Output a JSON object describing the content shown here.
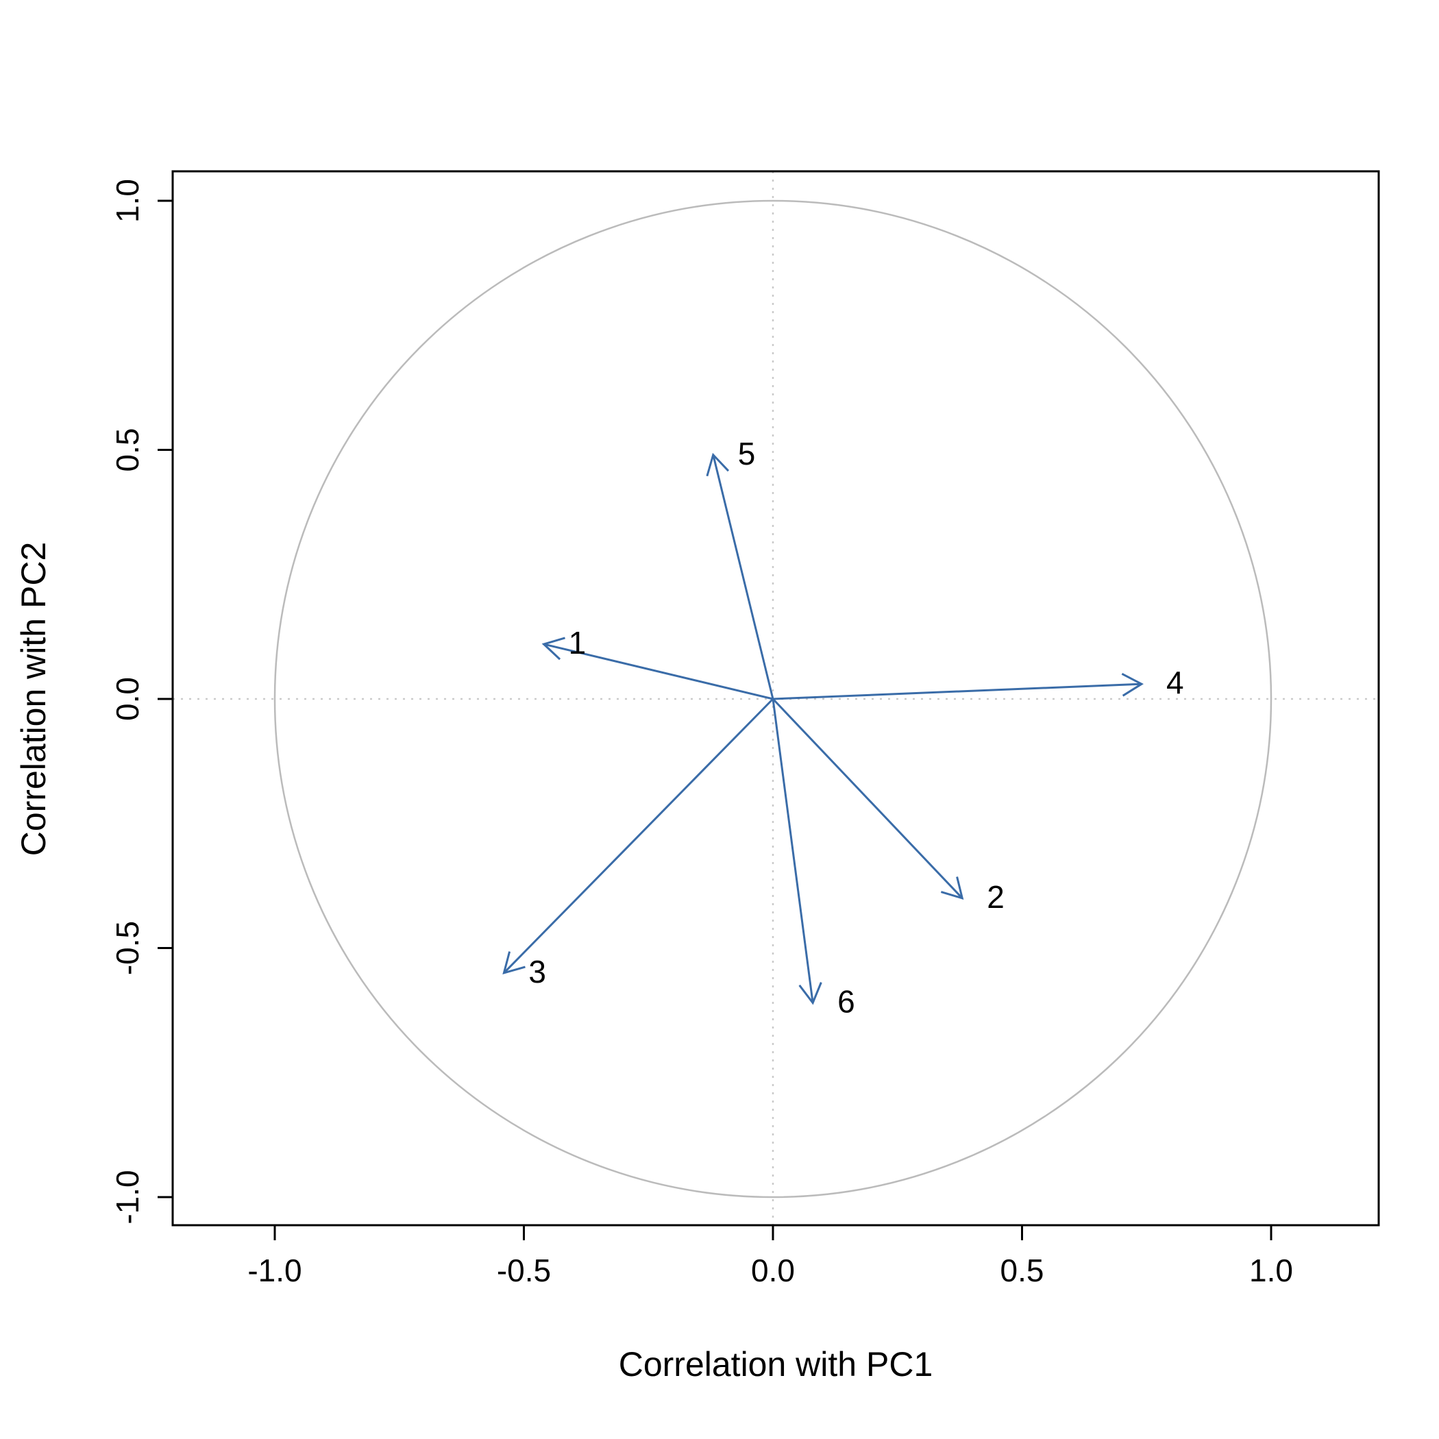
{
  "page": {
    "background": "#ffffff"
  },
  "chart_data": {
    "type": "scatter",
    "subtype": "pca-correlation-circle",
    "title": "",
    "xlabel": "Correlation with PC1",
    "ylabel": "Correlation with PC2",
    "xlim": [
      -1.2,
      1.2
    ],
    "ylim": [
      -1.2,
      1.2
    ],
    "grid": false,
    "legend": "none",
    "unit_circle_radius": 1.0,
    "reference_lines": [
      {
        "axis": "horizontal",
        "value": 0.0,
        "style": "dotted"
      },
      {
        "axis": "vertical",
        "value": 0.0,
        "style": "dotted"
      }
    ],
    "xticks": {
      "values": [
        -1.0,
        -0.5,
        0.0,
        0.5,
        1.0
      ],
      "labels": [
        "-1.0",
        "-0.5",
        "0.0",
        "0.5",
        "1.0"
      ]
    },
    "yticks": {
      "values": [
        -1.0,
        -0.5,
        0.0,
        0.5,
        1.0
      ],
      "labels": [
        "-1.0",
        "-0.5",
        "0.0",
        "0.5",
        "1.0"
      ]
    },
    "arrows": [
      {
        "label": "1",
        "x": -0.46,
        "y": 0.11
      },
      {
        "label": "2",
        "x": 0.38,
        "y": -0.4
      },
      {
        "label": "3",
        "x": -0.54,
        "y": -0.55
      },
      {
        "label": "4",
        "x": 0.74,
        "y": 0.03
      },
      {
        "label": "5",
        "x": -0.12,
        "y": 0.49
      },
      {
        "label": "6",
        "x": 0.08,
        "y": -0.61
      }
    ],
    "colors": {
      "arrow": "#3A6CA8",
      "circle": "#BBBBBB",
      "reference_line": "#CBCBCB",
      "axis": "#000000",
      "text": "#000000"
    }
  }
}
